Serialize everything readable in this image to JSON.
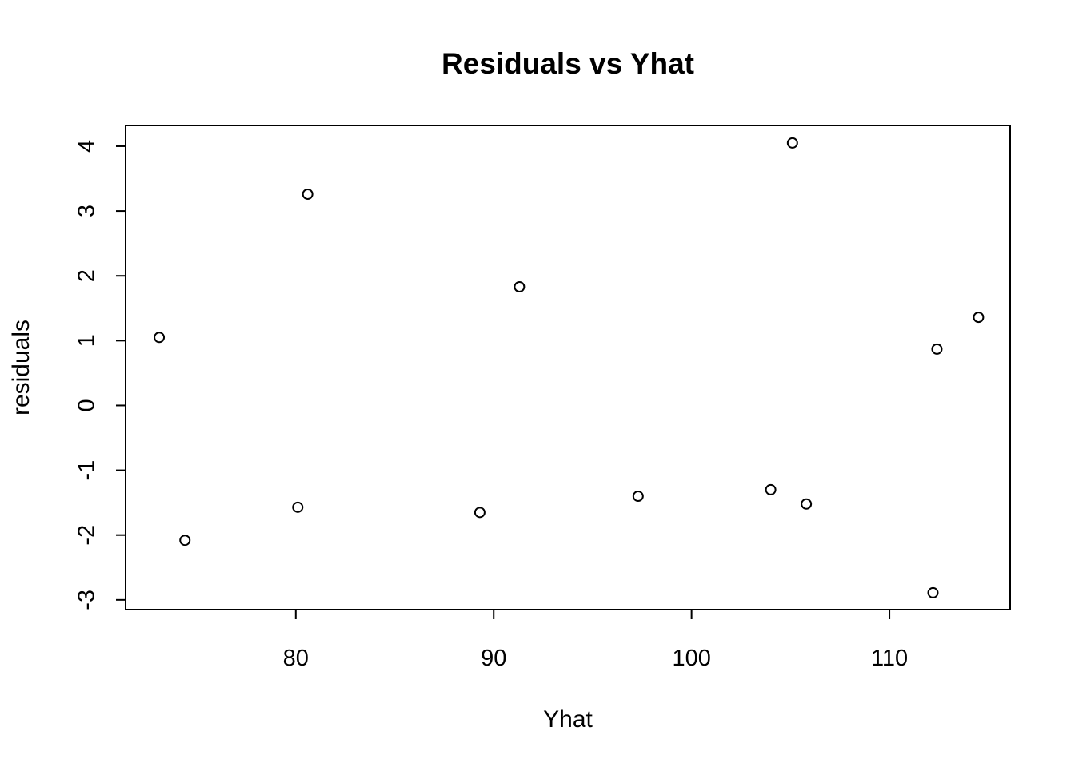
{
  "chart_data": {
    "type": "scatter",
    "title": "Residuals vs Yhat",
    "xlabel": "Yhat",
    "ylabel": "residuals",
    "xlim": [
      71.4,
      116.1
    ],
    "ylim": [
      -3.15,
      4.32
    ],
    "x_ticks": [
      80,
      90,
      100,
      110
    ],
    "y_ticks": [
      -3,
      -2,
      -1,
      0,
      1,
      2,
      3,
      4
    ],
    "grid": false,
    "legend": "none",
    "marker": "open-circle",
    "points": [
      {
        "x": 73.1,
        "y": 1.05
      },
      {
        "x": 74.4,
        "y": -2.08
      },
      {
        "x": 80.1,
        "y": -1.57
      },
      {
        "x": 80.6,
        "y": 3.26
      },
      {
        "x": 89.3,
        "y": -1.65
      },
      {
        "x": 91.3,
        "y": 1.83
      },
      {
        "x": 97.3,
        "y": -1.4
      },
      {
        "x": 104.0,
        "y": -1.3
      },
      {
        "x": 105.1,
        "y": 4.05
      },
      {
        "x": 105.8,
        "y": -1.52
      },
      {
        "x": 112.2,
        "y": -2.89
      },
      {
        "x": 112.4,
        "y": 0.87
      },
      {
        "x": 114.5,
        "y": 1.36
      }
    ]
  }
}
